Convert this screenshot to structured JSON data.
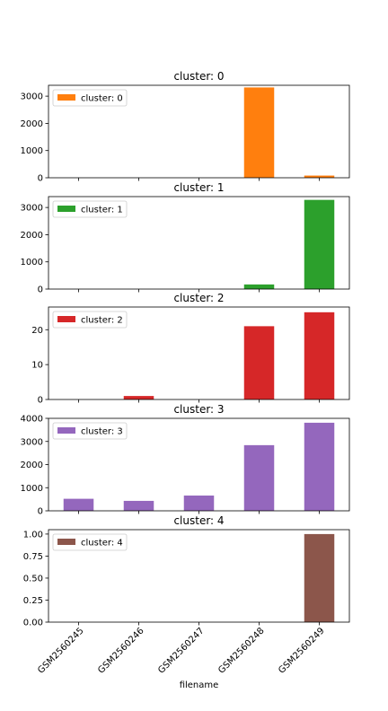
{
  "figure": {
    "xlabel": "filename"
  },
  "chart_data": [
    {
      "type": "bar",
      "title": "cluster: 0",
      "categories": [
        "GSM2560245",
        "GSM2560246",
        "GSM2560247",
        "GSM2560248",
        "GSM2560249"
      ],
      "series": [
        {
          "name": "cluster: 0",
          "values": [
            0,
            0,
            0,
            3320,
            80
          ]
        }
      ],
      "color": "#ff7f0e",
      "ylim": [
        0,
        3400
      ],
      "yticks": [
        0,
        1000,
        2000,
        3000
      ],
      "ytick_labels": [
        "0",
        "1000",
        "2000",
        "3000"
      ],
      "legend": "top-left",
      "grid": false
    },
    {
      "type": "bar",
      "title": "cluster: 1",
      "categories": [
        "GSM2560245",
        "GSM2560246",
        "GSM2560247",
        "GSM2560248",
        "GSM2560249"
      ],
      "series": [
        {
          "name": "cluster: 1",
          "values": [
            0,
            0,
            0,
            170,
            3280
          ]
        }
      ],
      "color": "#2ca02c",
      "ylim": [
        0,
        3400
      ],
      "yticks": [
        0,
        1000,
        2000,
        3000
      ],
      "ytick_labels": [
        "0",
        "1000",
        "2000",
        "3000"
      ],
      "legend": "top-left",
      "grid": false
    },
    {
      "type": "bar",
      "title": "cluster: 2",
      "categories": [
        "GSM2560245",
        "GSM2560246",
        "GSM2560247",
        "GSM2560248",
        "GSM2560249"
      ],
      "series": [
        {
          "name": "cluster: 2",
          "values": [
            0,
            1,
            0,
            21,
            25
          ]
        }
      ],
      "color": "#d62728",
      "ylim": [
        0,
        26.5
      ],
      "yticks": [
        0,
        10,
        20
      ],
      "ytick_labels": [
        "0",
        "10",
        "20"
      ],
      "legend": "top-left",
      "grid": false
    },
    {
      "type": "bar",
      "title": "cluster: 3",
      "categories": [
        "GSM2560245",
        "GSM2560246",
        "GSM2560247",
        "GSM2560248",
        "GSM2560249"
      ],
      "series": [
        {
          "name": "cluster: 3",
          "values": [
            520,
            430,
            660,
            2840,
            3810
          ]
        }
      ],
      "color": "#9467bd",
      "ylim": [
        0,
        4000
      ],
      "yticks": [
        0,
        1000,
        2000,
        3000,
        4000
      ],
      "ytick_labels": [
        "0",
        "1000",
        "2000",
        "3000",
        "4000"
      ],
      "legend": "top-left",
      "grid": false
    },
    {
      "type": "bar",
      "title": "cluster: 4",
      "categories": [
        "GSM2560245",
        "GSM2560246",
        "GSM2560247",
        "GSM2560248",
        "GSM2560249"
      ],
      "series": [
        {
          "name": "cluster: 4",
          "values": [
            0,
            0,
            0,
            0,
            1.0
          ]
        }
      ],
      "color": "#8c564b",
      "ylim": [
        0,
        1.05
      ],
      "yticks": [
        0,
        0.25,
        0.5,
        0.75,
        1.0
      ],
      "ytick_labels": [
        "0.00",
        "0.25",
        "0.50",
        "0.75",
        "1.00"
      ],
      "legend": "top-left",
      "grid": false
    }
  ]
}
